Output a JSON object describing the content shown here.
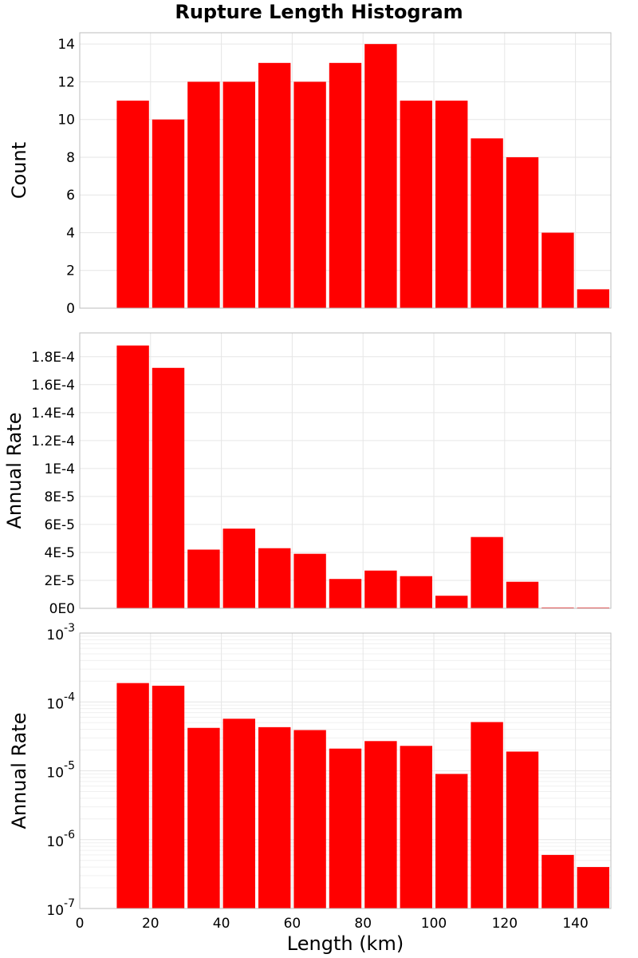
{
  "chart_data": {
    "title": "Rupture Length Histogram",
    "type": "bar",
    "xlabel": "Length (km)",
    "x_tick_labels": [
      "0",
      "20",
      "40",
      "60",
      "80",
      "100",
      "120",
      "140"
    ],
    "xlim": [
      0,
      150
    ],
    "bin_width": 10,
    "bin_centers": [
      15,
      25,
      35,
      45,
      55,
      65,
      75,
      85,
      95,
      105,
      115,
      125,
      135,
      145
    ],
    "bar_color": "#ff0000",
    "grid": true,
    "panels": [
      {
        "id": "count",
        "ylabel": "Count",
        "scale": "linear",
        "ylim": [
          0,
          14.6
        ],
        "y_tick_values": [
          0,
          2,
          4,
          6,
          8,
          10,
          12,
          14
        ],
        "y_tick_labels": [
          "0",
          "2",
          "4",
          "6",
          "8",
          "10",
          "12",
          "14"
        ],
        "values": [
          11,
          10,
          12,
          12,
          13,
          12,
          13,
          14,
          11,
          11,
          9,
          8,
          4,
          1
        ]
      },
      {
        "id": "annual-rate-linear",
        "ylabel": "Annual Rate",
        "scale": "linear",
        "ylim": [
          0,
          0.000197
        ],
        "y_tick_values": [
          0,
          2e-05,
          4e-05,
          6e-05,
          8e-05,
          0.0001,
          0.00012,
          0.00014,
          0.00016,
          0.00018
        ],
        "y_tick_labels": [
          "0E0",
          "2E-5",
          "4E-5",
          "6E-5",
          "8E-5",
          "1E-4",
          "1.2E-4",
          "1.4E-4",
          "1.6E-4",
          "1.8E-4"
        ],
        "values": [
          0.000188,
          0.000172,
          4.2e-05,
          5.7e-05,
          4.3e-05,
          3.9e-05,
          2.1e-05,
          2.7e-05,
          2.3e-05,
          9e-06,
          5.1e-05,
          1.9e-05,
          6e-07,
          4e-07
        ]
      },
      {
        "id": "annual-rate-log",
        "ylabel": "Annual Rate",
        "scale": "log",
        "ylim": [
          1e-07,
          0.001
        ],
        "y_tick_values": [
          1e-07,
          1e-06,
          1e-05,
          0.0001,
          0.001
        ],
        "y_tick_labels": [
          {
            "base": "10",
            "exp": "-7"
          },
          {
            "base": "10",
            "exp": "-6"
          },
          {
            "base": "10",
            "exp": "-5"
          },
          {
            "base": "10",
            "exp": "-4"
          },
          {
            "base": "10",
            "exp": "-3"
          }
        ],
        "values": [
          0.000188,
          0.000172,
          4.2e-05,
          5.7e-05,
          4.3e-05,
          3.9e-05,
          2.1e-05,
          2.7e-05,
          2.3e-05,
          9e-06,
          5.1e-05,
          1.9e-05,
          6e-07,
          4e-07
        ]
      }
    ]
  }
}
